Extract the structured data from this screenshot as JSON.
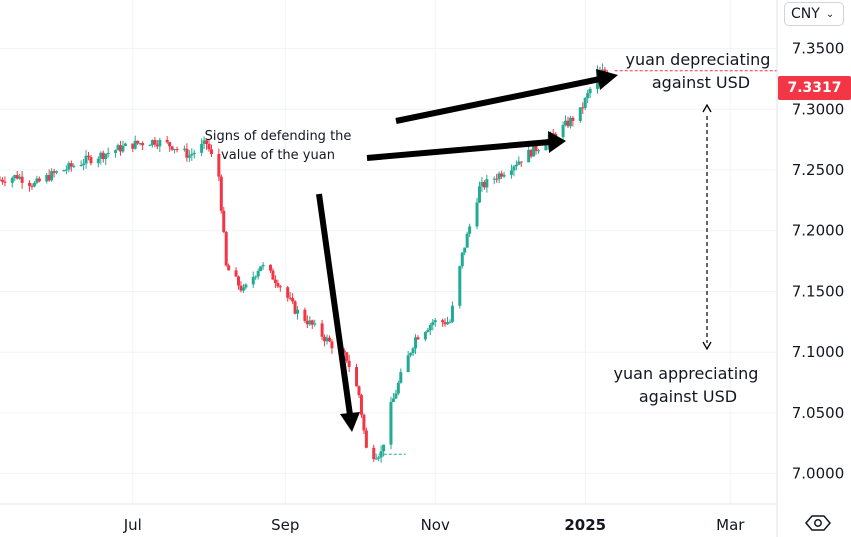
{
  "currency_selector": {
    "label": "CNY",
    "chevron": "chevron-down-icon"
  },
  "last_price": "7.3317",
  "annotations": {
    "defending": [
      "Signs of defending the",
      "value of the yuan"
    ],
    "depreciating": [
      "yuan depreciating",
      "against USD"
    ],
    "appreciating": [
      "yuan appreciating",
      "against USD"
    ]
  },
  "colors": {
    "up": "#22ab94",
    "down": "#f23645",
    "grid": "#f0f3fa",
    "arrow": "#000000"
  },
  "settings_icon": "settings-icon",
  "chart_data": {
    "type": "candlestick",
    "title": "",
    "y_axis_ticks": [
      "7.3500",
      "7.3000",
      "7.2500",
      "7.2000",
      "7.1500",
      "7.1000",
      "7.0500",
      "7.0000"
    ],
    "x_axis_ticks": [
      "Jul",
      "Sep",
      "Nov",
      "2025",
      "Mar"
    ],
    "ylim": [
      6.975,
      7.39
    ],
    "date_range": [
      "2024-05-08",
      "2025-03-20"
    ],
    "series": [
      {
        "date": "2024-05-08",
        "value": 7.242
      },
      {
        "date": "2024-05-15",
        "value": 7.245
      },
      {
        "date": "2024-05-22",
        "value": 7.238
      },
      {
        "date": "2024-05-29",
        "value": 7.246
      },
      {
        "date": "2024-06-05",
        "value": 7.252
      },
      {
        "date": "2024-06-12",
        "value": 7.258
      },
      {
        "date": "2024-06-19",
        "value": 7.263
      },
      {
        "date": "2024-06-26",
        "value": 7.268
      },
      {
        "date": "2024-07-03",
        "value": 7.272
      },
      {
        "date": "2024-07-10",
        "value": 7.274
      },
      {
        "date": "2024-07-17",
        "value": 7.27
      },
      {
        "date": "2024-07-24",
        "value": 7.262
      },
      {
        "date": "2024-07-31",
        "value": 7.272
      },
      {
        "date": "2024-08-05",
        "value": 7.245
      },
      {
        "date": "2024-08-08",
        "value": 7.17
      },
      {
        "date": "2024-08-15",
        "value": 7.15
      },
      {
        "date": "2024-08-22",
        "value": 7.172
      },
      {
        "date": "2024-08-29",
        "value": 7.158
      },
      {
        "date": "2024-09-05",
        "value": 7.135
      },
      {
        "date": "2024-09-12",
        "value": 7.122
      },
      {
        "date": "2024-09-19",
        "value": 7.108
      },
      {
        "date": "2024-09-26",
        "value": 7.095
      },
      {
        "date": "2024-10-01",
        "value": 7.065
      },
      {
        "date": "2024-10-04",
        "value": 7.02
      },
      {
        "date": "2024-10-07",
        "value": 7.016
      },
      {
        "date": "2024-10-10",
        "value": 7.017
      },
      {
        "date": "2024-10-14",
        "value": 7.055
      },
      {
        "date": "2024-10-18",
        "value": 7.08
      },
      {
        "date": "2024-10-24",
        "value": 7.112
      },
      {
        "date": "2024-10-31",
        "value": 7.125
      },
      {
        "date": "2024-11-07",
        "value": 7.125
      },
      {
        "date": "2024-11-12",
        "value": 7.18
      },
      {
        "date": "2024-11-19",
        "value": 7.235
      },
      {
        "date": "2024-11-26",
        "value": 7.245
      },
      {
        "date": "2024-12-03",
        "value": 7.255
      },
      {
        "date": "2024-12-10",
        "value": 7.265
      },
      {
        "date": "2024-12-17",
        "value": 7.275
      },
      {
        "date": "2024-12-23",
        "value": 7.285
      },
      {
        "date": "2024-12-30",
        "value": 7.298
      },
      {
        "date": "2025-01-06",
        "value": 7.33
      },
      {
        "date": "2025-01-13",
        "value": 7.3317
      }
    ]
  }
}
